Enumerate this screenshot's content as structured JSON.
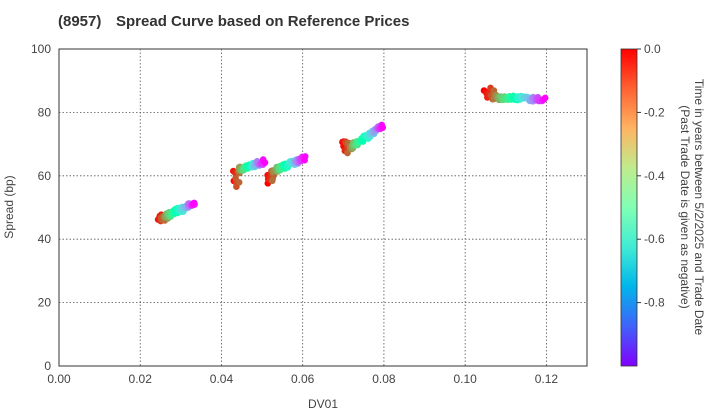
{
  "header": {
    "code": "(8957)",
    "title": "Spread Curve based on Reference Prices"
  },
  "chart_data": {
    "type": "scatter",
    "xlabel": "DV01",
    "ylabel": "Spread (bp)",
    "xlim": [
      0.0,
      0.13
    ],
    "ylim": [
      0,
      100
    ],
    "xticks": [
      "0.00",
      "0.02",
      "0.04",
      "0.06",
      "0.08",
      "0.10",
      "0.12"
    ],
    "yticks": [
      "0",
      "20",
      "40",
      "60",
      "80",
      "100"
    ],
    "grid": true,
    "colormap": "rainbow",
    "colorbar": {
      "label_line1": "Time in years between 5/2/2025 and Trade Date",
      "label_line2": "(Past Trade Date is given as negative)",
      "range": [
        -1.0,
        0.0
      ],
      "ticks": [
        "0.0",
        "-0.2",
        "-0.4",
        "-0.6",
        "-0.8"
      ]
    },
    "clusters": [
      {
        "x0": 0.0245,
        "y0": 46.0,
        "x1": 0.0335,
        "y1": 51.5,
        "yStartLow": 45.2,
        "yStartHigh": 47.8
      },
      {
        "x0": 0.043,
        "y0": 61.5,
        "x1": 0.0505,
        "y1": 64.5,
        "yStartLow": 56.5,
        "yStartHigh": 62.0
      },
      {
        "x0": 0.0515,
        "y0": 61.0,
        "x1": 0.0605,
        "y1": 65.5,
        "yStartLow": 57.0,
        "yStartHigh": 61.5
      },
      {
        "x0": 0.07,
        "y0": 67.5,
        "x1": 0.08,
        "y1": 76.0,
        "yStartLow": 66.0,
        "yStartHigh": 71.0
      },
      {
        "x0": 0.105,
        "y0": 85.0,
        "x1": 0.1195,
        "y1": 84.0,
        "yStartLow": 84.0,
        "yStartHigh": 88.0
      }
    ]
  }
}
